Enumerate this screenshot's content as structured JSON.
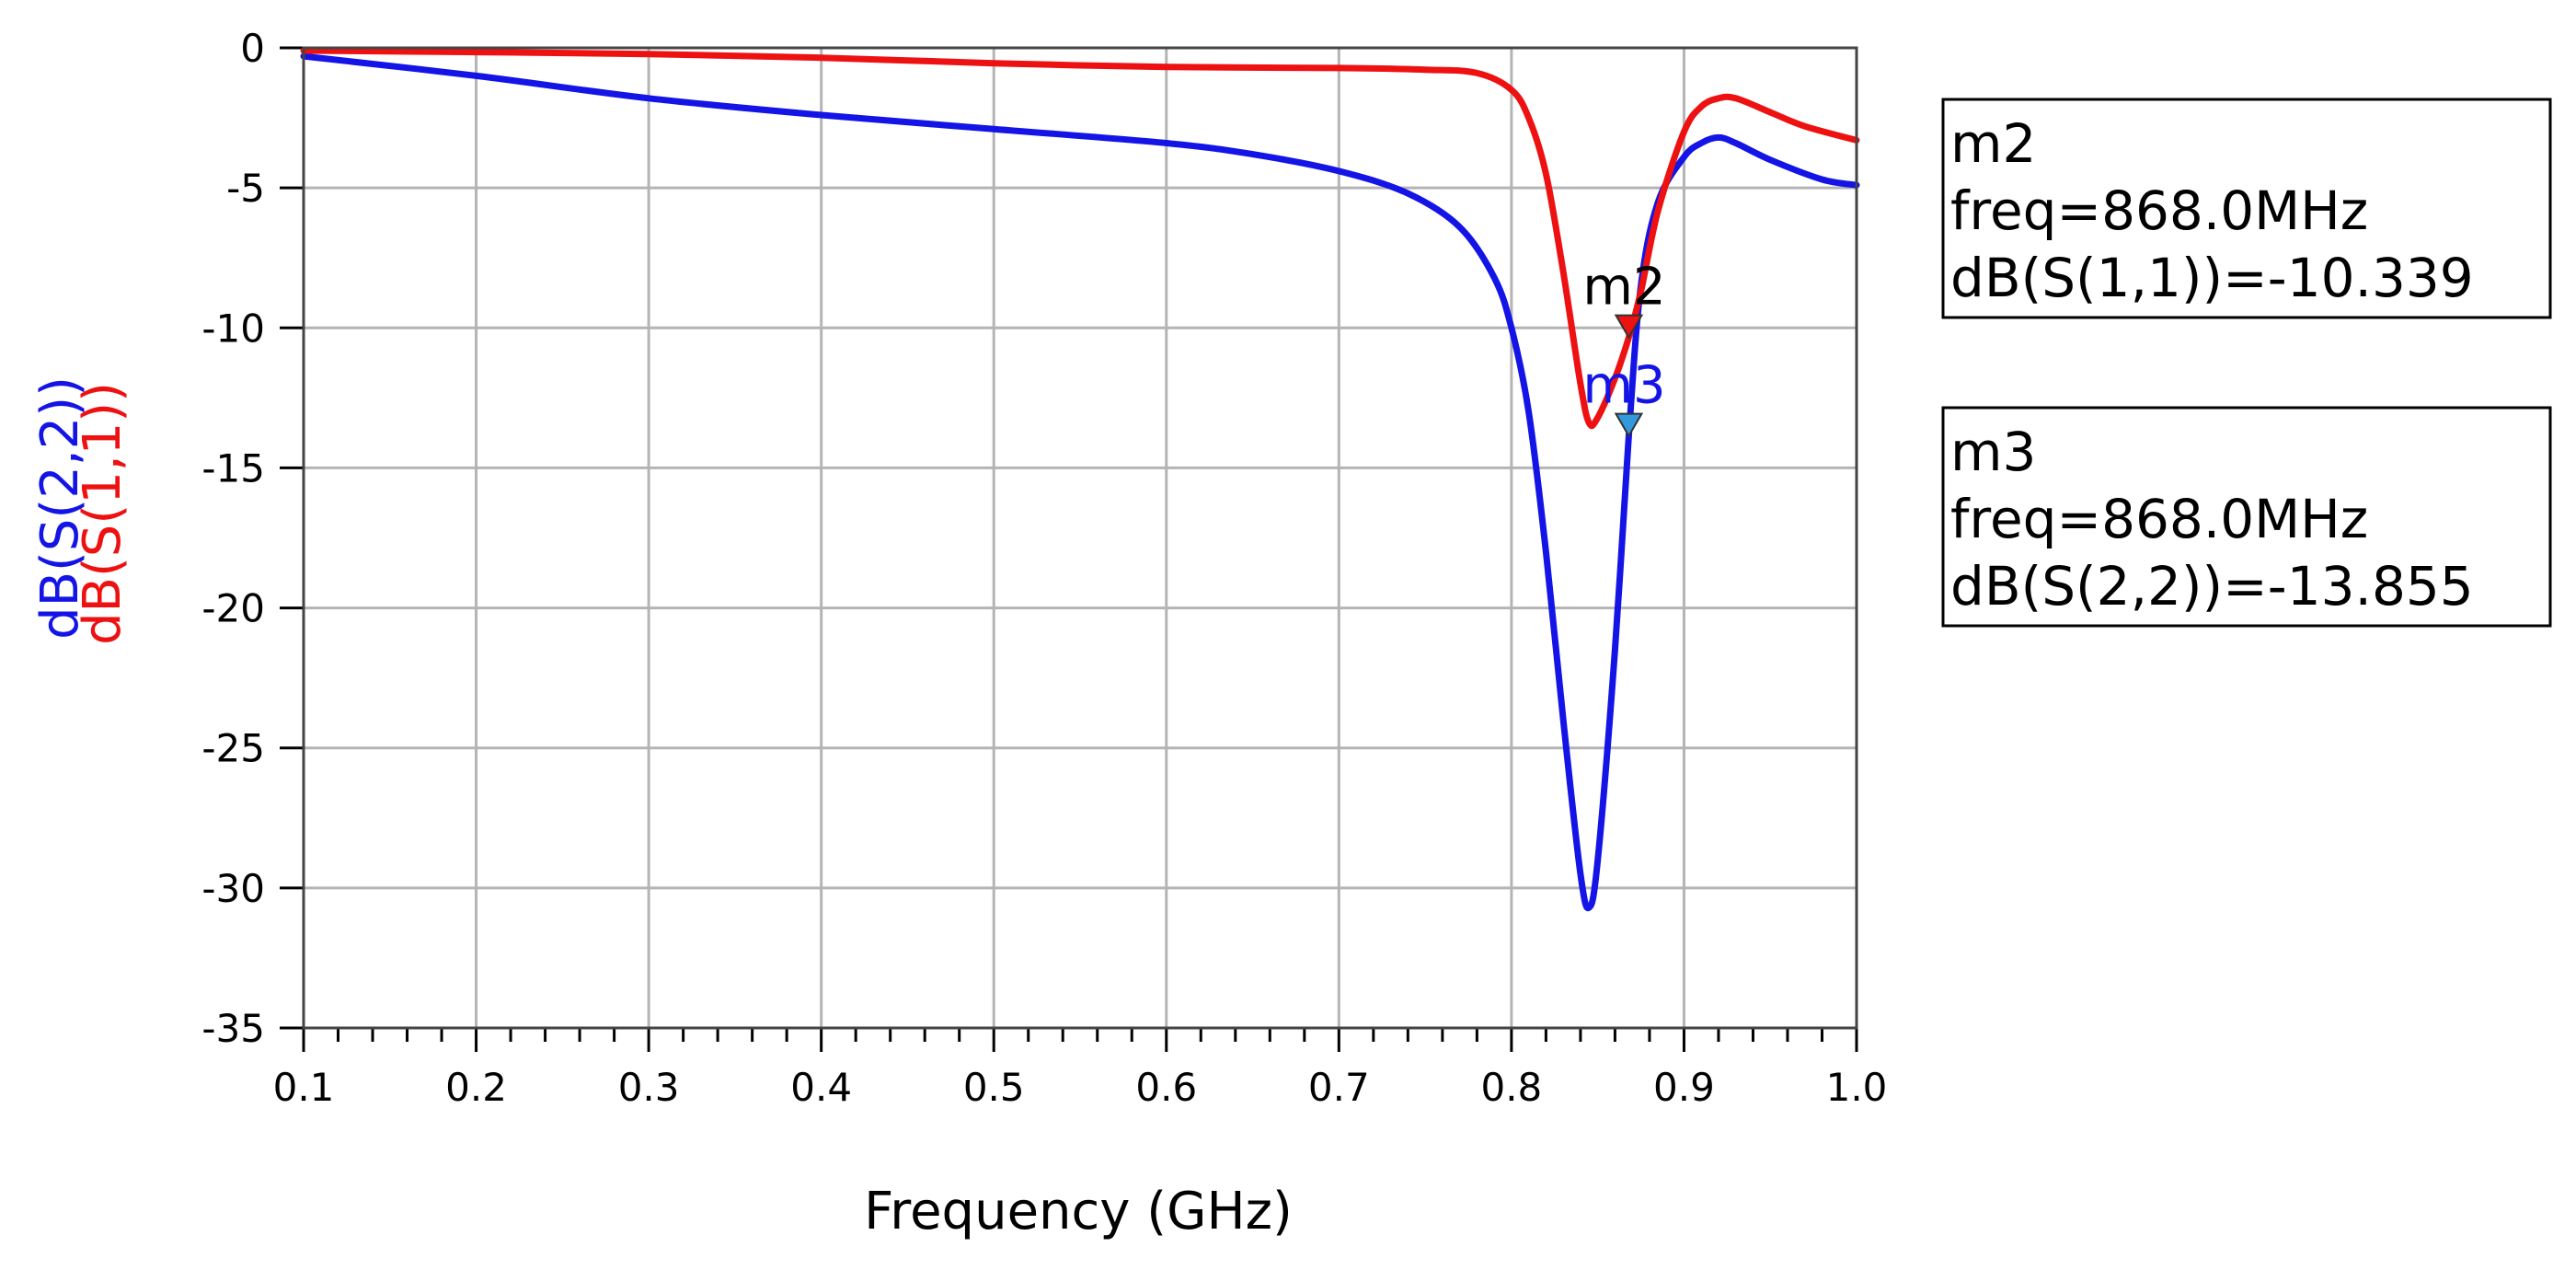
{
  "chart_data": {
    "type": "line",
    "title": "",
    "xlabel": "Frequency (GHz)",
    "ylabel_parts": [
      {
        "text": "dB(S(2,2))",
        "color": "#1414E6"
      },
      {
        "text": "dB(S(1,1))",
        "color": "#EE1111"
      }
    ],
    "xlim": [
      0.1,
      1.0
    ],
    "ylim": [
      -35,
      0
    ],
    "x_ticks": [
      0.1,
      0.2,
      0.3,
      0.4,
      0.5,
      0.6,
      0.7,
      0.8,
      0.9,
      1.0
    ],
    "x_tick_labels": [
      "0.1",
      "0.2",
      "0.3",
      "0.4",
      "0.5",
      "0.6",
      "0.7",
      "0.8",
      "0.9",
      "1.0"
    ],
    "y_ticks": [
      0,
      -5,
      -10,
      -15,
      -20,
      -25,
      -30,
      -35
    ],
    "y_tick_labels": [
      "0",
      "-5",
      "-10",
      "-15",
      "-20",
      "-25",
      "-30",
      "-35"
    ],
    "grid": true,
    "series": [
      {
        "name": "dB(S(1,1))",
        "color": "#EE1111",
        "x": [
          0.1,
          0.2,
          0.3,
          0.4,
          0.5,
          0.6,
          0.7,
          0.75,
          0.78,
          0.8,
          0.81,
          0.82,
          0.83,
          0.84,
          0.845,
          0.85,
          0.86,
          0.868,
          0.875,
          0.885,
          0.9,
          0.91,
          0.92,
          0.93,
          0.95,
          0.97,
          1.0
        ],
        "values": [
          -0.1,
          -0.15,
          -0.22,
          -0.35,
          -0.55,
          -0.68,
          -0.72,
          -0.78,
          -0.9,
          -1.5,
          -2.5,
          -4.5,
          -8.0,
          -12.0,
          -13.4,
          -13.2,
          -11.8,
          -10.339,
          -8.7,
          -5.8,
          -3.0,
          -2.1,
          -1.8,
          -1.8,
          -2.3,
          -2.8,
          -3.3
        ]
      },
      {
        "name": "dB(S(2,2))",
        "color": "#1414E6",
        "x": [
          0.1,
          0.2,
          0.3,
          0.4,
          0.5,
          0.6,
          0.65,
          0.7,
          0.74,
          0.77,
          0.79,
          0.8,
          0.81,
          0.82,
          0.83,
          0.84,
          0.845,
          0.85,
          0.86,
          0.868,
          0.875,
          0.885,
          0.9,
          0.91,
          0.92,
          0.93,
          0.95,
          0.98,
          1.0
        ],
        "values": [
          -0.3,
          -1.0,
          -1.8,
          -2.4,
          -2.9,
          -3.4,
          -3.8,
          -4.4,
          -5.2,
          -6.4,
          -8.2,
          -10.0,
          -13.0,
          -18.0,
          -24.0,
          -29.5,
          -30.7,
          -29.0,
          -21.5,
          -13.855,
          -8.5,
          -5.5,
          -3.9,
          -3.4,
          -3.2,
          -3.4,
          -4.0,
          -4.7,
          -4.9
        ]
      }
    ],
    "markers": [
      {
        "name": "m2",
        "x": 0.868,
        "y": -10.339,
        "color": "#EE1111",
        "label_color": "#000000"
      },
      {
        "name": "m3",
        "x": 0.868,
        "y": -13.855,
        "color": "#3399DD",
        "label_color": "#1414E6"
      }
    ]
  },
  "readouts": [
    {
      "marker": "m2",
      "freq_text": "freq=868.0MHz",
      "value_text": "dB(S(1,1))=-10.339"
    },
    {
      "marker": "m3",
      "freq_text": "freq=868.0MHz",
      "value_text": "dB(S(2,2))=-13.855"
    }
  ]
}
